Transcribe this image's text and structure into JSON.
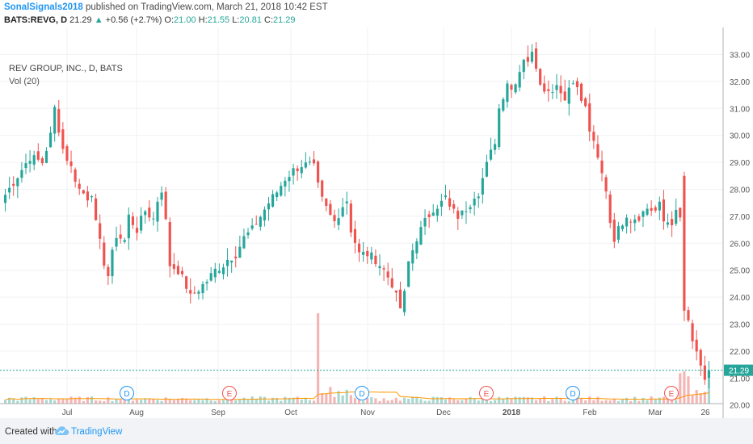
{
  "header": {
    "author": "SonalSignals2018",
    "published_text": "published on TradingView.com, March 21, 2018 10:42 EST",
    "symbol": "BATS:REVG, D",
    "last": "21.29",
    "change": "+0.56 (+2.7%)",
    "ohlc": {
      "o_label": "O:",
      "o": "21.00",
      "h_label": "H:",
      "h": "21.55",
      "l_label": "L:",
      "l": "20.81",
      "c_label": "C:",
      "c": "21.29"
    }
  },
  "legend": {
    "series_title": "REV GROUP, INC., D, BATS",
    "volume_title": "Vol (20)"
  },
  "footer": {
    "created_with": "Created with",
    "brand": "TradingView"
  },
  "colors": {
    "up": "#26a69a",
    "down": "#ef5350",
    "volume_up": "#a8d8d0",
    "volume_down": "#f5b5b4",
    "volume_ma": "#ff9800",
    "last_price_line": "#26a69a",
    "dividend_marker": "#2196f3",
    "earnings_marker": "#ef5350",
    "brand": "#2196f3"
  },
  "chart_data": {
    "type": "candlestick",
    "title": "REV GROUP, INC., D, BATS",
    "x_tick_labels": [
      "Jul",
      "Aug",
      "Sep",
      "Oct",
      "Nov",
      "Dec",
      "2018",
      "Feb",
      "Mar",
      "26"
    ],
    "y_tick_labels": [
      "20.00",
      "21.00",
      "22.00",
      "23.00",
      "24.00",
      "25.00",
      "26.00",
      "27.00",
      "28.00",
      "29.00",
      "30.00",
      "31.00",
      "32.00",
      "33.00"
    ],
    "ylim": [
      19.8,
      33.4
    ],
    "last_price_label": "21.29",
    "grid": true,
    "event_markers": [
      {
        "label": "D",
        "type": "dividend",
        "near": "Aug"
      },
      {
        "label": "E",
        "type": "earnings",
        "near": "Sep"
      },
      {
        "label": "D",
        "type": "dividend",
        "near": "Nov"
      },
      {
        "label": "E",
        "type": "earnings",
        "near": "Dec"
      },
      {
        "label": "D",
        "type": "dividend",
        "near": "Feb"
      },
      {
        "label": "E",
        "type": "earnings",
        "near": "Mar"
      }
    ],
    "close_path": [
      [
        0,
        27.8
      ],
      [
        3,
        28.5
      ],
      [
        6,
        29.2
      ],
      [
        9,
        29.0
      ],
      [
        11,
        30.0
      ],
      [
        12,
        31.0
      ],
      [
        14,
        29.5
      ],
      [
        16,
        28.8
      ],
      [
        18,
        28.0
      ],
      [
        20,
        27.7
      ],
      [
        21,
        27.9
      ],
      [
        22,
        26.7
      ],
      [
        24,
        25.3
      ],
      [
        25,
        24.8
      ],
      [
        26,
        25.6
      ],
      [
        27,
        26.3
      ],
      [
        29,
        26.1
      ],
      [
        30,
        27.0
      ],
      [
        32,
        26.5
      ],
      [
        34,
        27.2
      ],
      [
        36,
        26.9
      ],
      [
        37,
        27.6
      ],
      [
        38,
        28.0
      ],
      [
        39,
        26.8
      ],
      [
        40,
        25.2
      ],
      [
        42,
        25.0
      ],
      [
        44,
        24.4
      ],
      [
        45,
        24.0
      ],
      [
        47,
        24.3
      ],
      [
        49,
        24.6
      ],
      [
        51,
        25.0
      ],
      [
        53,
        25.2
      ],
      [
        54,
        25.4
      ],
      [
        56,
        25.6
      ],
      [
        58,
        26.2
      ],
      [
        60,
        26.5
      ],
      [
        62,
        27.0
      ],
      [
        64,
        27.5
      ],
      [
        66,
        27.9
      ],
      [
        68,
        28.4
      ],
      [
        70,
        28.7
      ],
      [
        72,
        28.9
      ],
      [
        74,
        28.9
      ],
      [
        75,
        28.8
      ],
      [
        76,
        28.1
      ],
      [
        77,
        27.6
      ],
      [
        79,
        27.0
      ],
      [
        80,
        26.8
      ],
      [
        82,
        27.4
      ],
      [
        83,
        27.6
      ],
      [
        84,
        26.5
      ],
      [
        86,
        25.6
      ],
      [
        88,
        25.6
      ],
      [
        90,
        25.4
      ],
      [
        92,
        25.0
      ],
      [
        94,
        24.5
      ],
      [
        95,
        24.0
      ],
      [
        96,
        23.6
      ],
      [
        97,
        24.1
      ],
      [
        98,
        25.3
      ],
      [
        100,
        26.2
      ],
      [
        102,
        26.8
      ],
      [
        104,
        27.3
      ],
      [
        106,
        27.5
      ],
      [
        107,
        27.7
      ],
      [
        108,
        27.3
      ],
      [
        110,
        27.0
      ],
      [
        111,
        27.1
      ],
      [
        113,
        27.5
      ],
      [
        114,
        27.8
      ],
      [
        115,
        27.9
      ],
      [
        117,
        28.9
      ],
      [
        119,
        29.8
      ],
      [
        120,
        31.0
      ],
      [
        122,
        32.0
      ],
      [
        123,
        31.7
      ],
      [
        125,
        32.4
      ],
      [
        126,
        32.9
      ],
      [
        127,
        32.8
      ],
      [
        128,
        33.0
      ],
      [
        129,
        32.6
      ],
      [
        130,
        32.0
      ],
      [
        132,
        31.6
      ],
      [
        134,
        31.9
      ],
      [
        135,
        31.7
      ],
      [
        136,
        31.3
      ],
      [
        137,
        31.8
      ],
      [
        138,
        32.1
      ],
      [
        139,
        31.7
      ],
      [
        140,
        31.3
      ],
      [
        141,
        31.0
      ],
      [
        142,
        30.2
      ],
      [
        144,
        29.1
      ],
      [
        146,
        28.0
      ],
      [
        147,
        26.8
      ],
      [
        148,
        26.2
      ],
      [
        149,
        26.5
      ],
      [
        151,
        27.1
      ],
      [
        152,
        26.9
      ],
      [
        154,
        27.0
      ],
      [
        156,
        27.3
      ],
      [
        158,
        27.2
      ],
      [
        159,
        27.4
      ],
      [
        160,
        26.8
      ],
      [
        162,
        26.8
      ],
      [
        163,
        27.1
      ],
      [
        164,
        26.9
      ],
      [
        165,
        23.5
      ],
      [
        166,
        23.0
      ],
      [
        167,
        22.3
      ],
      [
        168,
        22.0
      ],
      [
        169,
        21.3
      ],
      [
        170,
        20.8
      ],
      [
        171,
        21.29
      ]
    ]
  }
}
